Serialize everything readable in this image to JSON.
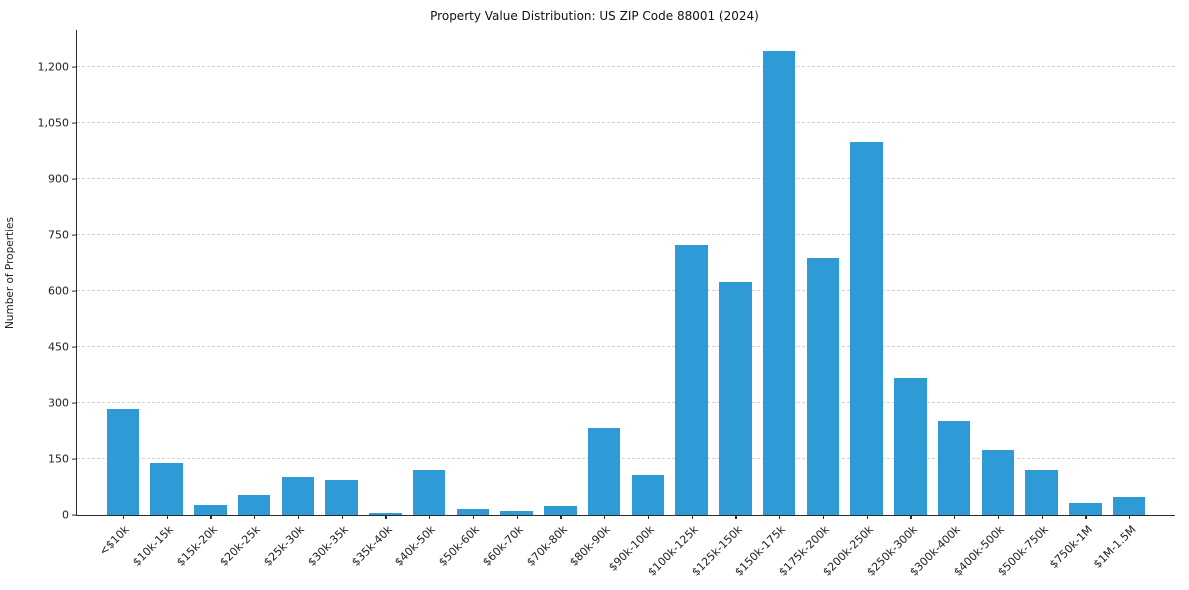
{
  "chart_data": {
    "type": "bar",
    "title": "Property Value Distribution: US ZIP Code 88001 (2024)",
    "xlabel": "",
    "ylabel": "Number of Properties",
    "categories": [
      "<$10k",
      "$10k-15k",
      "$15k-20k",
      "$20k-25k",
      "$25k-30k",
      "$30k-35k",
      "$35k-40k",
      "$40k-50k",
      "$50k-60k",
      "$60k-70k",
      "$70k-80k",
      "$80k-90k",
      "$90k-100k",
      "$100k-125k",
      "$125k-150k",
      "$150k-175k",
      "$175k-200k",
      "$200k-250k",
      "$250k-300k",
      "$300k-400k",
      "$400k-500k",
      "$500k-750k",
      "$750k-1M",
      "$1M-1.5M"
    ],
    "values": [
      285,
      140,
      27,
      53,
      102,
      95,
      5,
      121,
      16,
      10,
      24,
      232,
      107,
      725,
      625,
      1245,
      690,
      1000,
      368,
      253,
      175,
      122,
      32,
      48
    ],
    "ylim": [
      0,
      1300
    ],
    "yticks": [
      0,
      150,
      300,
      450,
      600,
      750,
      900,
      1050,
      1200
    ],
    "ytick_labels": [
      "0",
      "150",
      "300",
      "450",
      "600",
      "750",
      "900",
      "1,050",
      "1,200"
    ],
    "grid": "horizontal-dashed",
    "legend_position": "none",
    "bar_color": "#2e9bd6",
    "axis_color": "#2b2b2b",
    "background_color": "#ffffff"
  }
}
